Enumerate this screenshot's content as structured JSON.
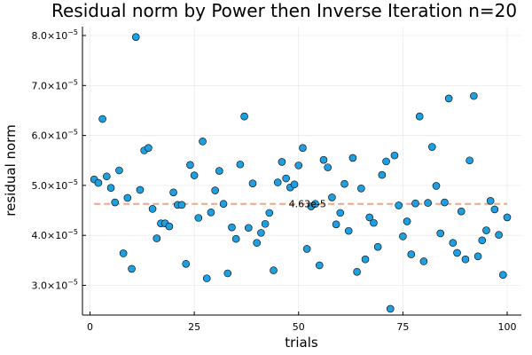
{
  "chart_data": {
    "type": "scatter",
    "title": "Residual norm by Power then Inverse Iteration  n=20",
    "xlabel": "trials",
    "ylabel": "residual norm",
    "xlim": [
      0,
      100
    ],
    "ylim": [
      2.35e-05,
      8.1e-05
    ],
    "xticks": [
      0,
      25,
      50,
      75,
      100
    ],
    "xtick_labels": [
      "0",
      "25",
      "50",
      "75",
      "100"
    ],
    "yticks": [
      3e-05,
      4e-05,
      5e-05,
      6e-05,
      7e-05,
      8e-05
    ],
    "ytick_labels": [
      {
        "mantissa": "3.0×10",
        "exp": "−5"
      },
      {
        "mantissa": "4.0×10",
        "exp": "−5"
      },
      {
        "mantissa": "5.0×10",
        "exp": "−5"
      },
      {
        "mantissa": "6.0×10",
        "exp": "−5"
      },
      {
        "mantissa": "7.0×10",
        "exp": "−5"
      },
      {
        "mantissa": "8.0×10",
        "exp": "−5"
      }
    ],
    "grid": true,
    "marker_color": "#1f9fe0",
    "mean_line": {
      "value": 4.63e-05,
      "color": "#f0a585"
    },
    "annotation": {
      "text": "4.63e-5",
      "x": 50,
      "y": 4.63e-05
    },
    "x": [
      1,
      2,
      3,
      4,
      5,
      6,
      7,
      8,
      9,
      10,
      11,
      12,
      13,
      14,
      15,
      16,
      17,
      18,
      19,
      20,
      21,
      22,
      23,
      24,
      25,
      26,
      27,
      28,
      29,
      30,
      31,
      32,
      33,
      34,
      35,
      36,
      37,
      38,
      39,
      40,
      41,
      42,
      43,
      44,
      45,
      46,
      47,
      48,
      49,
      50,
      51,
      52,
      53,
      54,
      55,
      56,
      57,
      58,
      59,
      60,
      61,
      62,
      63,
      64,
      65,
      66,
      67,
      68,
      69,
      70,
      71,
      72,
      73,
      74,
      75,
      76,
      77,
      78,
      79,
      80,
      81,
      82,
      83,
      84,
      85,
      86,
      87,
      88,
      89,
      90,
      91,
      92,
      93,
      94,
      95,
      96,
      97,
      98,
      99,
      100
    ],
    "y": [
      5.12e-05,
      5.05e-05,
      6.33e-05,
      5.18e-05,
      4.95e-05,
      4.66e-05,
      5.3e-05,
      3.64e-05,
      4.75e-05,
      3.33e-05,
      7.97e-05,
      4.91e-05,
      5.7e-05,
      5.75e-05,
      4.53e-05,
      3.94e-05,
      4.24e-05,
      4.24e-05,
      4.18e-05,
      4.86e-05,
      4.61e-05,
      4.61e-05,
      3.43e-05,
      5.41e-05,
      5.2e-05,
      4.35e-05,
      5.88e-05,
      3.14e-05,
      4.46e-05,
      4.9e-05,
      5.29e-05,
      4.63e-05,
      3.24e-05,
      4.16e-05,
      3.93e-05,
      5.42e-05,
      6.38e-05,
      4.15e-05,
      5.04e-05,
      3.85e-05,
      4.05e-05,
      4.23e-05,
      4.45e-05,
      3.3e-05,
      5.06e-05,
      5.47e-05,
      5.14e-05,
      4.96e-05,
      5.02e-05,
      5.4e-05,
      5.75e-05,
      3.73e-05,
      4.58e-05,
      4.63e-05,
      3.4e-05,
      5.51e-05,
      5.36e-05,
      4.76e-05,
      4.22e-05,
      4.45e-05,
      5.03e-05,
      4.09e-05,
      5.55e-05,
      3.27e-05,
      4.94e-05,
      3.52e-05,
      4.36e-05,
      4.25e-05,
      3.77e-05,
      5.21e-05,
      5.48e-05,
      2.53e-05,
      5.6e-05,
      4.6e-05,
      3.98e-05,
      4.28e-05,
      3.62e-05,
      4.64e-05,
      6.38e-05,
      3.48e-05,
      4.65e-05,
      5.77e-05,
      4.99e-05,
      4.04e-05,
      4.66e-05,
      6.74e-05,
      3.85e-05,
      3.65e-05,
      4.48e-05,
      3.52e-05,
      5.5e-05,
      6.79e-05,
      3.58e-05,
      3.9e-05,
      4.1e-05,
      4.69e-05,
      4.52e-05,
      4.01e-05,
      3.21e-05,
      4.36e-05
    ]
  }
}
